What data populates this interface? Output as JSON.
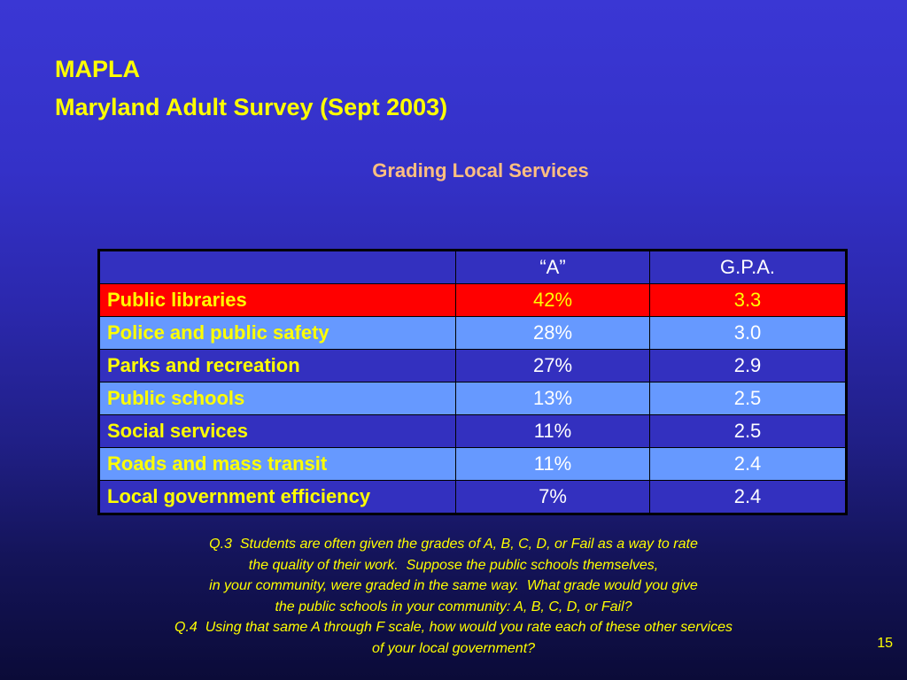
{
  "slide": {
    "title_line1": "MAPLA",
    "title_line2": "Maryland Adult Survey (Sept 2003)",
    "subtitle": "Grading Local Services",
    "page_number": "15"
  },
  "table": {
    "headers": [
      "",
      "“A”",
      "G.P.A."
    ],
    "rows": [
      {
        "service": "Public libraries",
        "a": "42%",
        "gpa": "3.3"
      },
      {
        "service": "Police and public safety",
        "a": "28%",
        "gpa": "3.0"
      },
      {
        "service": "Parks and recreation",
        "a": "27%",
        "gpa": "2.9"
      },
      {
        "service": "Public schools",
        "a": "13%",
        "gpa": "2.5"
      },
      {
        "service": "Social services",
        "a": "11%",
        "gpa": "2.5"
      },
      {
        "service": "Roads and mass transit",
        "a": "11%",
        "gpa": "2.4"
      },
      {
        "service": "Local government efficiency",
        "a": "7%",
        "gpa": "2.4"
      }
    ]
  },
  "notes": [
    "Q.3  Students are often given the grades of A, B, C, D, or Fail as a way to rate",
    "the quality of their work.  Suppose the public schools themselves,",
    "in your community, were graded in the same way.  What grade would you give",
    "the public schools in your community: A, B, C, D, or Fail?",
    "Q.4  Using that same A through F scale, how would you rate each of these other services",
    "of your local government?"
  ],
  "colors": {
    "title": "#ffff00",
    "subtitle": "#ffbf80",
    "highlight_row": "#ff0000",
    "light_row": "#6699ff",
    "dark_row": "#3330bf"
  }
}
